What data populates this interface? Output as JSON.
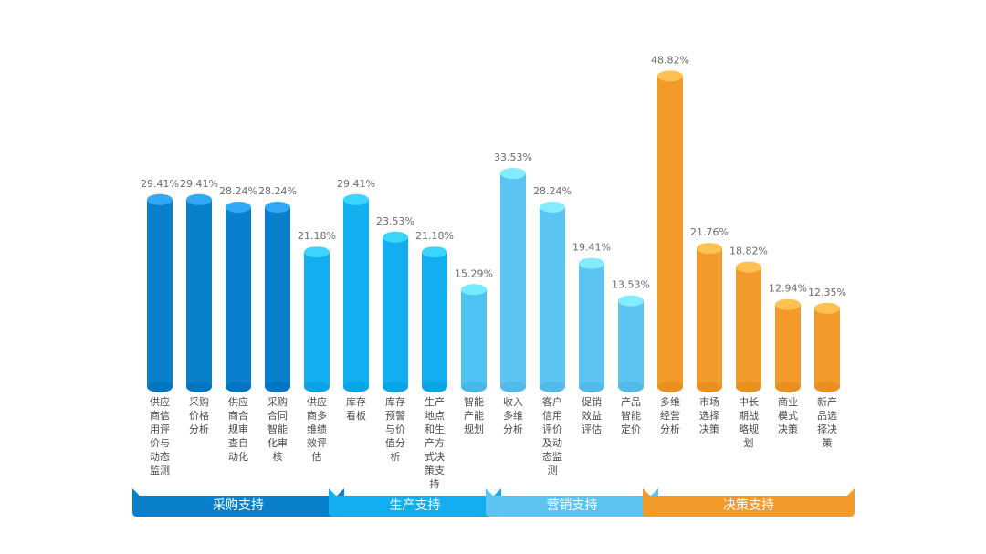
{
  "chart_data": {
    "type": "bar",
    "unit": "%",
    "ylim": [
      0,
      50
    ],
    "groups": [
      {
        "name": "采购支持",
        "color": "#0a80cc",
        "categories": [
          "供应商信用评价与动态监测",
          "采购价格分析",
          "供应商合规审查自动化",
          "采购合同智能化审核",
          "供应商多维绩效评估"
        ],
        "values": [
          29.41,
          29.41,
          28.24,
          28.24,
          21.18
        ],
        "colors": [
          "#0a80cc",
          "#0a80cc",
          "#0a80cc",
          "#0a80cc",
          "#12aef0"
        ]
      },
      {
        "name": "生产支持",
        "color": "#12aef0",
        "categories": [
          "库存看板",
          "库存预警与价值分析",
          "生产地点和生产方式决策支持",
          "智能产能规划"
        ],
        "values": [
          29.41,
          23.53,
          21.18,
          15.29
        ],
        "colors": [
          "#12aef0",
          "#12aef0",
          "#12aef0",
          "#4ec2f2"
        ]
      },
      {
        "name": "营销支持",
        "color": "#5cc4f2",
        "categories": [
          "收入多维分析",
          "客户信用评价及动态监测",
          "促销效益评估",
          "产品智能定价"
        ],
        "values": [
          33.53,
          28.24,
          19.41,
          13.53
        ],
        "colors": [
          "#5cc4f2",
          "#5cc4f2",
          "#5cc4f2",
          "#5cc4f2"
        ]
      },
      {
        "name": "决策支持",
        "color": "#f29a2a",
        "categories": [
          "多维经营分析",
          "市场选择决策",
          "中长期战略规划",
          "商业模式决策",
          "新产品选择决策"
        ],
        "values": [
          48.82,
          21.76,
          18.82,
          12.94,
          12.35
        ],
        "colors": [
          "#f29a2a",
          "#f29a2a",
          "#f29a2a",
          "#f29a2a",
          "#f29a2a"
        ]
      }
    ]
  }
}
